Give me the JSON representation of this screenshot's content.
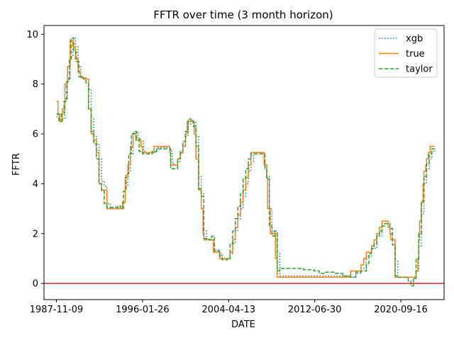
{
  "chart_data": {
    "type": "line",
    "title": "FFTR over time (3 month horizon)",
    "xlabel": "DATE",
    "ylabel": "FFTR",
    "x_ticks": [
      "1987-11-09",
      "1996-01-26",
      "2004-04-13",
      "2012-06-30",
      "2020-09-16"
    ],
    "y_ticks": [
      "0",
      "2",
      "4",
      "6",
      "8",
      "10"
    ],
    "xlim": [
      "1986-09-01",
      "2024-11-01"
    ],
    "ylim": [
      -0.65,
      10.35
    ],
    "grid": false,
    "legend_position": "upper right",
    "reference_line": {
      "y": 0,
      "color": "#d62728"
    },
    "series": [
      {
        "name": "xgb",
        "color": "#1f77b4",
        "style": "dotted",
        "points": [
          [
            "1987-11-09",
            6.7
          ],
          [
            "1988-03-01",
            6.6
          ],
          [
            "1988-06-01",
            6.6
          ],
          [
            "1988-09-01",
            7.4
          ],
          [
            "1988-12-01",
            8.2
          ],
          [
            "1989-03-01",
            9.1
          ],
          [
            "1989-06-01",
            9.85
          ],
          [
            "1989-09-01",
            9.5
          ],
          [
            "1989-12-01",
            8.7
          ],
          [
            "1990-03-01",
            8.3
          ],
          [
            "1990-06-01",
            8.25
          ],
          [
            "1990-09-01",
            8.2
          ],
          [
            "1990-12-01",
            7.8
          ],
          [
            "1991-03-01",
            6.6
          ],
          [
            "1991-06-01",
            5.9
          ],
          [
            "1991-09-01",
            5.6
          ],
          [
            "1991-12-01",
            5.0
          ],
          [
            "1992-03-01",
            4.1
          ],
          [
            "1992-06-01",
            3.9
          ],
          [
            "1992-09-01",
            3.2
          ],
          [
            "1993-01-01",
            3.05
          ],
          [
            "1994-01-01",
            3.0
          ],
          [
            "1994-03-01",
            3.2
          ],
          [
            "1994-06-01",
            3.9
          ],
          [
            "1994-09-01",
            4.5
          ],
          [
            "1994-12-01",
            5.2
          ],
          [
            "1995-03-01",
            5.9
          ],
          [
            "1995-06-01",
            6.05
          ],
          [
            "1995-09-01",
            5.8
          ],
          [
            "1995-12-01",
            5.7
          ],
          [
            "1996-03-01",
            5.3
          ],
          [
            "1996-06-01",
            5.25
          ],
          [
            "1997-01-01",
            5.25
          ],
          [
            "1997-06-01",
            5.45
          ],
          [
            "1998-06-01",
            5.5
          ],
          [
            "1998-09-01",
            5.3
          ],
          [
            "1998-12-01",
            4.8
          ],
          [
            "1999-03-01",
            4.75
          ],
          [
            "1999-06-01",
            4.9
          ],
          [
            "1999-09-01",
            5.2
          ],
          [
            "1999-12-01",
            5.5
          ],
          [
            "2000-03-01",
            5.9
          ],
          [
            "2000-06-01",
            6.4
          ],
          [
            "2000-09-01",
            6.55
          ],
          [
            "2000-12-01",
            6.5
          ],
          [
            "2001-03-01",
            5.9
          ],
          [
            "2001-06-01",
            4.3
          ],
          [
            "2001-09-01",
            3.6
          ],
          [
            "2001-12-01",
            2.1
          ],
          [
            "2002-03-01",
            1.75
          ],
          [
            "2002-09-01",
            1.75
          ],
          [
            "2002-12-01",
            1.35
          ],
          [
            "2003-06-01",
            1.2
          ],
          [
            "2003-09-01",
            1.0
          ],
          [
            "2004-03-01",
            0.98
          ],
          [
            "2004-06-01",
            1.2
          ],
          [
            "2004-09-01",
            1.6
          ],
          [
            "2004-12-01",
            2.1
          ],
          [
            "2005-03-01",
            2.6
          ],
          [
            "2005-06-01",
            3.0
          ],
          [
            "2005-09-01",
            3.5
          ],
          [
            "2005-12-01",
            4.0
          ],
          [
            "2006-03-01",
            4.5
          ],
          [
            "2006-06-01",
            4.9
          ],
          [
            "2006-09-01",
            5.25
          ],
          [
            "2007-06-01",
            5.25
          ],
          [
            "2007-09-01",
            4.8
          ],
          [
            "2007-12-01",
            4.3
          ],
          [
            "2008-03-01",
            3.0
          ],
          [
            "2008-06-01",
            2.1
          ],
          [
            "2008-09-01",
            2.0
          ],
          [
            "2008-12-01",
            1.2
          ],
          [
            "2009-03-01",
            0.3
          ],
          [
            "2015-12-01",
            0.25
          ],
          [
            "2016-06-01",
            0.4
          ],
          [
            "2016-12-01",
            0.6
          ],
          [
            "2017-06-01",
            1.1
          ],
          [
            "2017-12-01",
            1.4
          ],
          [
            "2018-06-01",
            1.9
          ],
          [
            "2018-12-01",
            2.4
          ],
          [
            "2019-06-01",
            2.4
          ],
          [
            "2019-09-01",
            2.0
          ],
          [
            "2019-12-01",
            1.7
          ],
          [
            "2020-03-01",
            0.9
          ],
          [
            "2020-06-01",
            0.25
          ],
          [
            "2021-12-01",
            0.2
          ],
          [
            "2022-03-01",
            0.5
          ],
          [
            "2022-06-01",
            1.5
          ],
          [
            "2022-09-01",
            2.8
          ],
          [
            "2022-12-01",
            4.0
          ],
          [
            "2023-03-01",
            4.6
          ],
          [
            "2023-06-01",
            5.0
          ],
          [
            "2023-09-01",
            5.3
          ],
          [
            "2023-12-01",
            5.35
          ]
        ]
      },
      {
        "name": "true",
        "color": "#ff7f0e",
        "style": "solid",
        "points": [
          [
            "1987-11-09",
            7.3
          ],
          [
            "1988-01-01",
            6.8
          ],
          [
            "1988-03-01",
            6.5
          ],
          [
            "1988-06-01",
            7.0
          ],
          [
            "1988-09-01",
            8.0
          ],
          [
            "1988-12-01",
            8.7
          ],
          [
            "1989-03-01",
            9.75
          ],
          [
            "1989-06-01",
            9.5
          ],
          [
            "1989-09-01",
            9.0
          ],
          [
            "1989-12-01",
            8.5
          ],
          [
            "1990-03-01",
            8.25
          ],
          [
            "1990-09-01",
            8.2
          ],
          [
            "1990-12-01",
            7.0
          ],
          [
            "1991-03-01",
            6.0
          ],
          [
            "1991-06-01",
            5.75
          ],
          [
            "1991-09-01",
            5.25
          ],
          [
            "1991-12-01",
            4.0
          ],
          [
            "1992-03-01",
            3.75
          ],
          [
            "1992-09-01",
            3.0
          ],
          [
            "1994-01-01",
            3.0
          ],
          [
            "1994-03-01",
            3.25
          ],
          [
            "1994-06-01",
            4.25
          ],
          [
            "1994-09-01",
            4.75
          ],
          [
            "1994-12-01",
            5.5
          ],
          [
            "1995-03-01",
            6.0
          ],
          [
            "1995-06-01",
            5.75
          ],
          [
            "1995-12-01",
            5.5
          ],
          [
            "1996-01-26",
            5.25
          ],
          [
            "1997-03-01",
            5.5
          ],
          [
            "1998-09-01",
            5.25
          ],
          [
            "1998-10-01",
            4.75
          ],
          [
            "1999-06-01",
            5.0
          ],
          [
            "1999-09-01",
            5.25
          ],
          [
            "1999-12-01",
            5.5
          ],
          [
            "2000-03-01",
            6.0
          ],
          [
            "2000-05-01",
            6.5
          ],
          [
            "2001-01-01",
            6.0
          ],
          [
            "2001-03-01",
            5.0
          ],
          [
            "2001-06-01",
            3.75
          ],
          [
            "2001-09-01",
            3.0
          ],
          [
            "2001-11-01",
            2.0
          ],
          [
            "2001-12-01",
            1.75
          ],
          [
            "2002-11-01",
            1.25
          ],
          [
            "2003-06-01",
            1.0
          ],
          [
            "2004-06-01",
            1.25
          ],
          [
            "2004-09-01",
            1.75
          ],
          [
            "2004-12-01",
            2.25
          ],
          [
            "2005-03-01",
            2.75
          ],
          [
            "2005-06-01",
            3.25
          ],
          [
            "2005-09-01",
            3.75
          ],
          [
            "2005-12-01",
            4.25
          ],
          [
            "2006-03-01",
            4.75
          ],
          [
            "2006-06-01",
            5.25
          ],
          [
            "2007-09-01",
            4.75
          ],
          [
            "2007-12-01",
            4.25
          ],
          [
            "2008-01-01",
            3.0
          ],
          [
            "2008-04-01",
            2.0
          ],
          [
            "2008-10-01",
            1.0
          ],
          [
            "2008-12-01",
            0.25
          ],
          [
            "2015-12-01",
            0.5
          ],
          [
            "2016-12-01",
            0.75
          ],
          [
            "2017-03-01",
            1.0
          ],
          [
            "2017-06-01",
            1.25
          ],
          [
            "2017-12-01",
            1.5
          ],
          [
            "2018-03-01",
            1.75
          ],
          [
            "2018-06-01",
            2.0
          ],
          [
            "2018-09-01",
            2.25
          ],
          [
            "2018-12-01",
            2.5
          ],
          [
            "2019-07-01",
            2.25
          ],
          [
            "2019-09-01",
            2.0
          ],
          [
            "2019-10-01",
            1.75
          ],
          [
            "2020-03-01",
            0.25
          ],
          [
            "2022-03-01",
            0.5
          ],
          [
            "2022-05-01",
            1.0
          ],
          [
            "2022-06-01",
            1.75
          ],
          [
            "2022-07-01",
            2.5
          ],
          [
            "2022-09-01",
            3.25
          ],
          [
            "2022-11-01",
            4.0
          ],
          [
            "2022-12-01",
            4.5
          ],
          [
            "2023-02-01",
            4.75
          ],
          [
            "2023-03-01",
            5.0
          ],
          [
            "2023-05-01",
            5.25
          ],
          [
            "2023-07-01",
            5.5
          ],
          [
            "2023-12-01",
            5.5
          ]
        ]
      },
      {
        "name": "taylor",
        "color": "#2ca02c",
        "style": "dashed",
        "points": [
          [
            "1987-11-09",
            6.8
          ],
          [
            "1988-02-01",
            6.5
          ],
          [
            "1988-05-01",
            6.8
          ],
          [
            "1988-08-01",
            7.3
          ],
          [
            "1988-11-01",
            8.1
          ],
          [
            "1989-02-01",
            9.0
          ],
          [
            "1989-04-01",
            9.85
          ],
          [
            "1989-07-01",
            9.3
          ],
          [
            "1989-10-01",
            8.9
          ],
          [
            "1990-01-01",
            8.3
          ],
          [
            "1990-06-01",
            8.2
          ],
          [
            "1990-09-01",
            8.05
          ],
          [
            "1990-12-01",
            7.0
          ],
          [
            "1991-03-01",
            6.1
          ],
          [
            "1991-06-01",
            5.6
          ],
          [
            "1991-09-01",
            5.0
          ],
          [
            "1991-12-01",
            4.0
          ],
          [
            "1992-03-01",
            3.7
          ],
          [
            "1992-06-01",
            3.2
          ],
          [
            "1992-09-01",
            3.05
          ],
          [
            "1993-09-01",
            3.1
          ],
          [
            "1994-01-01",
            3.0
          ],
          [
            "1994-04-01",
            3.7
          ],
          [
            "1994-07-01",
            4.4
          ],
          [
            "1994-10-01",
            5.2
          ],
          [
            "1995-01-01",
            6.0
          ],
          [
            "1995-04-01",
            6.1
          ],
          [
            "1995-07-01",
            5.8
          ],
          [
            "1995-10-01",
            5.3
          ],
          [
            "1996-01-26",
            5.2
          ],
          [
            "1997-01-01",
            5.3
          ],
          [
            "1997-06-01",
            5.4
          ],
          [
            "1998-06-01",
            5.4
          ],
          [
            "1998-10-01",
            4.6
          ],
          [
            "1999-03-01",
            4.6
          ],
          [
            "1999-06-01",
            5.0
          ],
          [
            "1999-09-01",
            5.3
          ],
          [
            "1999-12-01",
            5.7
          ],
          [
            "2000-03-01",
            6.1
          ],
          [
            "2000-06-01",
            6.6
          ],
          [
            "2000-09-01",
            6.5
          ],
          [
            "2000-12-01",
            6.3
          ],
          [
            "2001-03-01",
            5.5
          ],
          [
            "2001-06-01",
            3.8
          ],
          [
            "2001-09-01",
            3.5
          ],
          [
            "2001-12-01",
            1.8
          ],
          [
            "2002-06-01",
            1.75
          ],
          [
            "2002-09-01",
            1.9
          ],
          [
            "2002-12-01",
            1.3
          ],
          [
            "2003-06-01",
            1.1
          ],
          [
            "2003-09-01",
            0.95
          ],
          [
            "2004-03-01",
            1.0
          ],
          [
            "2004-06-01",
            1.6
          ],
          [
            "2004-09-01",
            2.1
          ],
          [
            "2004-12-01",
            2.6
          ],
          [
            "2005-03-01",
            3.1
          ],
          [
            "2005-06-01",
            3.6
          ],
          [
            "2005-09-01",
            4.2
          ],
          [
            "2005-12-01",
            4.6
          ],
          [
            "2006-03-01",
            5.0
          ],
          [
            "2006-06-01",
            5.2
          ],
          [
            "2007-08-01",
            5.2
          ],
          [
            "2007-10-01",
            4.6
          ],
          [
            "2007-12-01",
            4.2
          ],
          [
            "2008-03-01",
            2.3
          ],
          [
            "2008-06-01",
            1.9
          ],
          [
            "2008-09-01",
            2.1
          ],
          [
            "2008-12-01",
            0.5
          ],
          [
            "2009-03-01",
            0.6
          ],
          [
            "2010-06-01",
            0.6
          ],
          [
            "2011-06-01",
            0.55
          ],
          [
            "2012-06-01",
            0.5
          ],
          [
            "2012-12-01",
            0.4
          ],
          [
            "2013-06-01",
            0.45
          ],
          [
            "2014-06-01",
            0.4
          ],
          [
            "2015-03-01",
            0.3
          ],
          [
            "2015-12-01",
            0.25
          ],
          [
            "2016-06-01",
            0.45
          ],
          [
            "2016-12-01",
            0.5
          ],
          [
            "2017-06-01",
            0.8
          ],
          [
            "2017-09-01",
            1.2
          ],
          [
            "2017-12-01",
            1.4
          ],
          [
            "2018-03-01",
            1.6
          ],
          [
            "2018-06-01",
            1.9
          ],
          [
            "2018-09-01",
            2.1
          ],
          [
            "2018-12-01",
            2.3
          ],
          [
            "2019-03-01",
            2.4
          ],
          [
            "2019-09-01",
            2.2
          ],
          [
            "2019-12-01",
            1.55
          ],
          [
            "2020-03-01",
            0.3
          ],
          [
            "2020-06-01",
            0.25
          ],
          [
            "2021-06-01",
            0.1
          ],
          [
            "2021-09-01",
            -0.1
          ],
          [
            "2021-12-01",
            0.2
          ],
          [
            "2022-03-01",
            1.0
          ],
          [
            "2022-06-01",
            2.0
          ],
          [
            "2022-09-01",
            3.3
          ],
          [
            "2022-12-01",
            4.3
          ],
          [
            "2023-03-01",
            4.8
          ],
          [
            "2023-06-01",
            5.2
          ],
          [
            "2023-09-01",
            5.4
          ],
          [
            "2023-12-01",
            5.45
          ]
        ]
      }
    ]
  }
}
